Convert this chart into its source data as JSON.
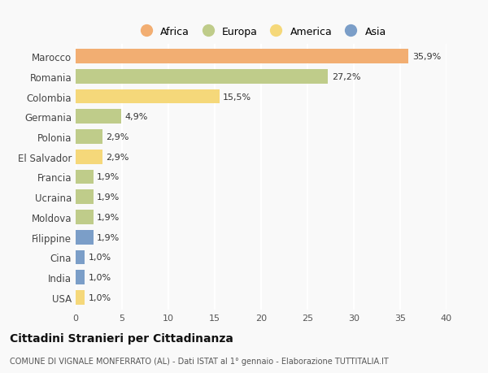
{
  "countries": [
    "Marocco",
    "Romania",
    "Colombia",
    "Germania",
    "Polonia",
    "El Salvador",
    "Francia",
    "Ucraina",
    "Moldova",
    "Filippine",
    "Cina",
    "India",
    "USA"
  ],
  "values": [
    35.9,
    27.2,
    15.5,
    4.9,
    2.9,
    2.9,
    1.9,
    1.9,
    1.9,
    1.9,
    1.0,
    1.0,
    1.0
  ],
  "labels": [
    "35,9%",
    "27,2%",
    "15,5%",
    "4,9%",
    "2,9%",
    "2,9%",
    "1,9%",
    "1,9%",
    "1,9%",
    "1,9%",
    "1,0%",
    "1,0%",
    "1,0%"
  ],
  "continents": [
    "Africa",
    "Europa",
    "America",
    "Europa",
    "Europa",
    "America",
    "Europa",
    "Europa",
    "Europa",
    "Asia",
    "Asia",
    "Asia",
    "America"
  ],
  "colors": {
    "Africa": "#F2AE72",
    "Europa": "#BFCC8A",
    "America": "#F5D87A",
    "Asia": "#7B9EC8"
  },
  "legend_order": [
    "Africa",
    "Europa",
    "America",
    "Asia"
  ],
  "title": "Cittadini Stranieri per Cittadinanza",
  "subtitle": "COMUNE DI VIGNALE MONFERRATO (AL) - Dati ISTAT al 1° gennaio - Elaborazione TUTTITALIA.IT",
  "xlim": [
    0,
    40
  ],
  "xticks": [
    0,
    5,
    10,
    15,
    20,
    25,
    30,
    35,
    40
  ],
  "background_color": "#f9f9f9",
  "grid_color": "#ffffff"
}
